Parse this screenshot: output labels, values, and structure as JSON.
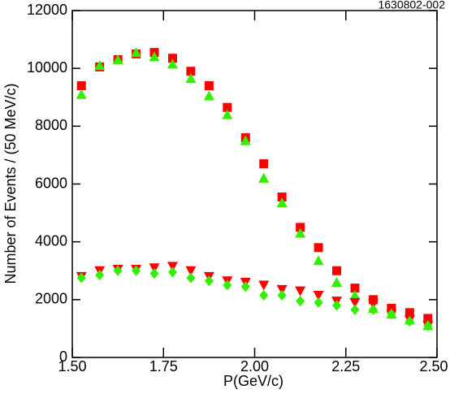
{
  "chart_data": {
    "type": "scatter",
    "annotation": "1630802-002",
    "xlabel": "P(GeV/c)",
    "ylabel": "Number of Events / (50 MeV/c)",
    "x": [
      1.525,
      1.575,
      1.625,
      1.675,
      1.725,
      1.775,
      1.825,
      1.875,
      1.925,
      1.975,
      2.025,
      2.075,
      2.125,
      2.175,
      2.225,
      2.275,
      2.325,
      2.375,
      2.425,
      2.475
    ],
    "series": [
      {
        "color": "#ff0000",
        "marker": "square",
        "values": [
          9400,
          10050,
          10300,
          10500,
          10550,
          10350,
          9900,
          9400,
          8650,
          7600,
          6700,
          5550,
          4500,
          3800,
          3000,
          2400,
          2000,
          1700,
          1550,
          1350
        ]
      },
      {
        "color": "#33ee00",
        "marker": "triangle-up",
        "values": [
          9100,
          10100,
          10300,
          10550,
          10400,
          10150,
          9650,
          9050,
          8400,
          7500,
          6200,
          5350,
          4300,
          3350,
          2600,
          2150,
          1700,
          1500,
          1300,
          1100
        ]
      },
      {
        "color": "#ff0000",
        "marker": "triangle-down",
        "values": [
          2800,
          3000,
          3050,
          3050,
          3100,
          3150,
          3000,
          2800,
          2650,
          2600,
          2500,
          2350,
          2300,
          2150,
          1950,
          1900,
          1850,
          1500,
          1300,
          1100
        ]
      },
      {
        "color": "#33ee00",
        "marker": "diamond",
        "values": [
          2750,
          2850,
          3000,
          3000,
          2900,
          2950,
          2750,
          2650,
          2500,
          2450,
          2150,
          2150,
          1950,
          1900,
          1800,
          1650,
          1650,
          1500,
          1250,
          1100
        ]
      }
    ],
    "xlim": [
      1.5,
      2.5
    ],
    "xticks": [
      {
        "value": 1.5,
        "label": "1.50"
      },
      {
        "value": 1.75,
        "label": "1.75"
      },
      {
        "value": 2.0,
        "label": "2.00"
      },
      {
        "value": 2.25,
        "label": "2.25"
      },
      {
        "value": 2.5,
        "label": "2.50"
      }
    ],
    "ylim": [
      0,
      12000
    ],
    "yticks": [
      0,
      2000,
      4000,
      6000,
      8000,
      10000,
      12000
    ]
  }
}
